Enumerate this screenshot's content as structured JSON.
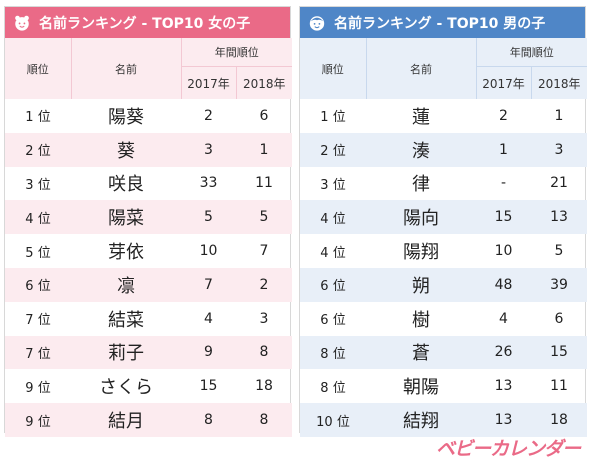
{
  "girls": {
    "title": "名前ランキング - TOP10 女の子",
    "header": {
      "rank": "順位",
      "name": "名前",
      "years": "年間順位",
      "y2017": "2017年",
      "y2018": "2018年"
    },
    "rows": [
      {
        "rank": "1 位",
        "name": "陽葵",
        "y2017": "2",
        "y2018": "6"
      },
      {
        "rank": "2 位",
        "name": "葵",
        "y2017": "3",
        "y2018": "1"
      },
      {
        "rank": "3 位",
        "name": "咲良",
        "y2017": "33",
        "y2018": "11"
      },
      {
        "rank": "4 位",
        "name": "陽菜",
        "y2017": "5",
        "y2018": "5"
      },
      {
        "rank": "5 位",
        "name": "芽依",
        "y2017": "10",
        "y2018": "7"
      },
      {
        "rank": "6 位",
        "name": "凛",
        "y2017": "7",
        "y2018": "2"
      },
      {
        "rank": "7 位",
        "name": "結菜",
        "y2017": "4",
        "y2018": "3"
      },
      {
        "rank": "7 位",
        "name": "莉子",
        "y2017": "9",
        "y2018": "8"
      },
      {
        "rank": "9 位",
        "name": "さくら",
        "y2017": "15",
        "y2018": "18"
      },
      {
        "rank": "9 位",
        "name": "結月",
        "y2017": "8",
        "y2018": "8"
      }
    ]
  },
  "boys": {
    "title": "名前ランキング - TOP10 男の子",
    "header": {
      "rank": "順位",
      "name": "名前",
      "years": "年間順位",
      "y2017": "2017年",
      "y2018": "2018年"
    },
    "rows": [
      {
        "rank": "1 位",
        "name": "蓮",
        "y2017": "2",
        "y2018": "1"
      },
      {
        "rank": "2 位",
        "name": "湊",
        "y2017": "1",
        "y2018": "3"
      },
      {
        "rank": "3 位",
        "name": "律",
        "y2017": "-",
        "y2018": "21"
      },
      {
        "rank": "4 位",
        "name": "陽向",
        "y2017": "15",
        "y2018": "13"
      },
      {
        "rank": "4 位",
        "name": "陽翔",
        "y2017": "10",
        "y2018": "5"
      },
      {
        "rank": "6 位",
        "name": "朔",
        "y2017": "48",
        "y2018": "39"
      },
      {
        "rank": "6 位",
        "name": "樹",
        "y2017": "4",
        "y2018": "6"
      },
      {
        "rank": "8 位",
        "name": "蒼",
        "y2017": "26",
        "y2018": "15"
      },
      {
        "rank": "8 位",
        "name": "朝陽",
        "y2017": "13",
        "y2018": "11"
      },
      {
        "rank": "10 位",
        "name": "結翔",
        "y2017": "13",
        "y2018": "18"
      }
    ]
  },
  "logo": "ベビーカレンダー",
  "colors": {
    "girls_accent": "#ea6a87",
    "girls_tint": "#fcebef",
    "boys_accent": "#4f86c7",
    "boys_tint": "#e8eff8"
  },
  "icons": {
    "girls": "girl-face-icon",
    "boys": "boy-face-icon"
  }
}
